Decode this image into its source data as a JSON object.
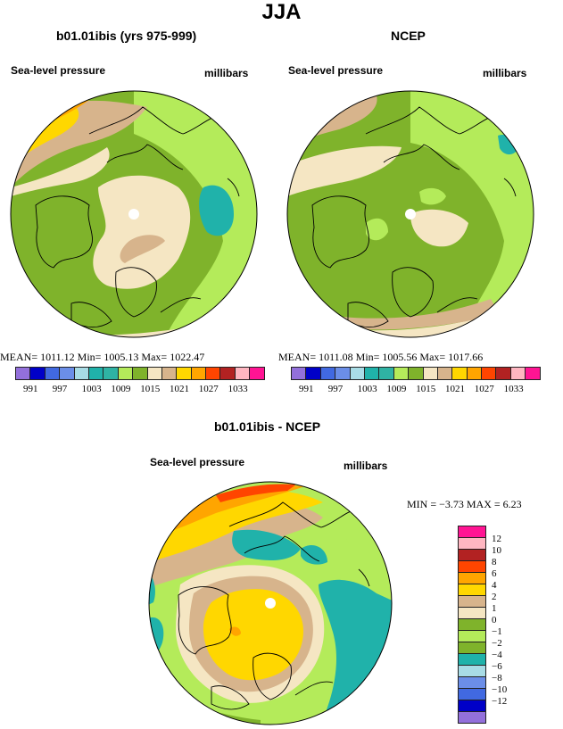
{
  "title": "JJA",
  "panel_left": {
    "title": "b01.01ibis (yrs 975-999)",
    "label_left": "Sea-level pressure",
    "label_right": "millibars",
    "stats": "MEAN= 1011.12  Min= 1005.13  Max= 1022.47"
  },
  "panel_right": {
    "title": "NCEP",
    "label_left": "Sea-level pressure",
    "label_right": "millibars",
    "stats": "MEAN= 1011.08  Min= 1005.56  Max= 1017.66"
  },
  "panel_diff": {
    "title": "b01.01ibis - NCEP",
    "label_left": "Sea-level pressure",
    "label_right": "millibars",
    "stats": "MIN =   −3.73 MAX =    6.23"
  },
  "abs_colorbar": {
    "colors": [
      "#9370db",
      "#0000c8",
      "#4169e1",
      "#6b8ee8",
      "#a8dce6",
      "#20b2aa",
      "#2fb3a4",
      "#b4eb5a",
      "#7fb32b",
      "#f5e6c3",
      "#d7b48c",
      "#ffd700",
      "#ffa500",
      "#ff4500",
      "#b22222",
      "#ffb6c1",
      "#ff1493"
    ],
    "labels": [
      "991",
      "997",
      "1003",
      "1009",
      "1015",
      "1021",
      "1027",
      "1033"
    ]
  },
  "diff_colorbar": {
    "colors": [
      "#ff1493",
      "#ffb6c1",
      "#b22222",
      "#ff4500",
      "#ffa500",
      "#ffd700",
      "#d7b48c",
      "#f5e6c3",
      "#7fb32b",
      "#b4eb5a",
      "#7fb32b",
      "#20b2aa",
      "#a8dce6",
      "#6b8ee8",
      "#4169e1",
      "#0000c8",
      "#9370db"
    ],
    "labels": [
      "12",
      "10",
      "8",
      "6",
      "4",
      "2",
      "1",
      "0",
      "−1",
      "−2",
      "−4",
      "−6",
      "−8",
      "−10",
      "−12"
    ]
  },
  "colors": {
    "light_green": "#b4eb5a",
    "olive_green": "#7fb32b",
    "beige": "#f5e6c3",
    "tan": "#d7b48c",
    "yellow": "#ffd700",
    "orange": "#ffa500",
    "red_orange": "#ff4500",
    "teal": "#20b2aa",
    "light_blue": "#a8dce6"
  }
}
